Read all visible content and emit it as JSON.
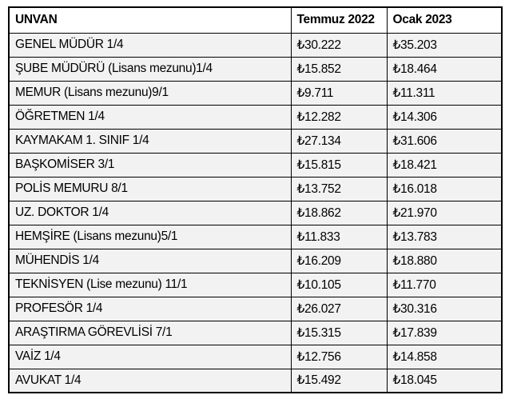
{
  "chart_data": {
    "type": "table",
    "columns": [
      "UNVAN",
      "Temmuz 2022",
      "Ocak 2023"
    ],
    "rows": [
      [
        "GENEL MÜDÜR 1/4",
        "₺30.222",
        "₺35.203"
      ],
      [
        "ŞUBE MÜDÜRÜ (Lisans mezunu)1/4",
        "₺15.852",
        "₺18.464"
      ],
      [
        "MEMUR (Lisans mezunu)9/1",
        "₺9.711",
        "₺11.311"
      ],
      [
        "ÖĞRETMEN 1/4",
        "₺12.282",
        "₺14.306"
      ],
      [
        "KAYMAKAM 1. SINIF 1/4",
        "₺27.134",
        "₺31.606"
      ],
      [
        "BAŞKOMİSER 3/1",
        "₺15.815",
        "₺18.421"
      ],
      [
        "POLİS MEMURU 8/1",
        "₺13.752",
        "₺16.018"
      ],
      [
        "UZ. DOKTOR 1/4",
        "₺18.862",
        "₺21.970"
      ],
      [
        "HEMŞİRE (Lisans mezunu)5/1",
        "₺11.833",
        "₺13.783"
      ],
      [
        "MÜHENDİS 1/4",
        "₺16.209",
        "₺18.880"
      ],
      [
        "TEKNİSYEN (Lise mezunu) 11/1",
        "₺10.105",
        "₺11.770"
      ],
      [
        "PROFESÖR 1/4",
        "₺26.027",
        "₺30.316"
      ],
      [
        "ARAŞTIRMA GÖREVLİSİ 7/1",
        "₺15.315",
        "₺17.839"
      ],
      [
        "VAİZ 1/4",
        "₺12.756",
        "₺14.858"
      ],
      [
        "AVUKAT 1/4",
        "₺15.492",
        "₺18.045"
      ]
    ],
    "currency_symbol": "₺",
    "colors": {
      "header_background": "#ffffff",
      "row_background": "#f2f2f2",
      "border": "#000000",
      "text": "#000000"
    }
  }
}
